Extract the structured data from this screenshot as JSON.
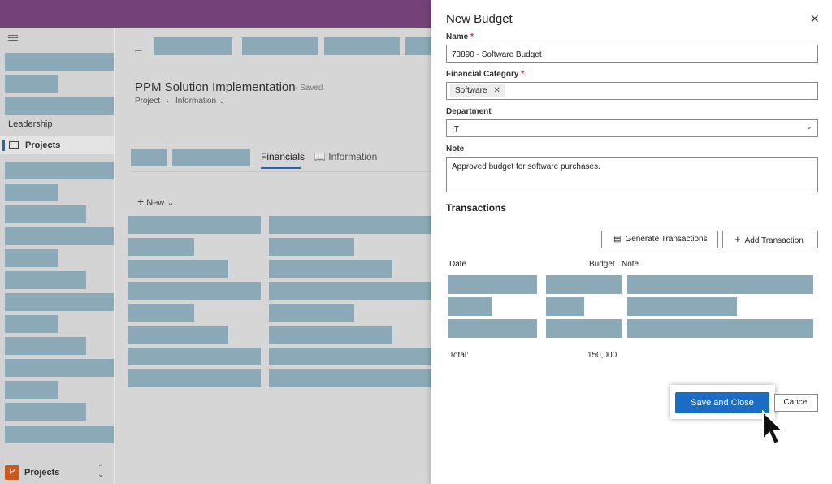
{
  "app": {
    "page_title": "PPM Solution Implementation",
    "saved_status": "- Saved",
    "entity_type": "Project",
    "form_name": "Information"
  },
  "sidebar": {
    "group_label": "Leadership",
    "selected_item": "Projects",
    "footer_avatar": "P",
    "footer_label": "Projects"
  },
  "tabs": {
    "financials": "Financials",
    "information": "Information"
  },
  "commands": {
    "new": "New"
  },
  "dialog": {
    "title": "New Budget",
    "name": {
      "label": "Name",
      "required": "*",
      "value": "73890 - Software Budget"
    },
    "financial_category": {
      "label": "Financial Category",
      "required": "*",
      "tag": "Software"
    },
    "department": {
      "label": "Department",
      "value": "IT"
    },
    "note": {
      "label": "Note",
      "value": "Approved budget for software purchases."
    },
    "transactions": {
      "title": "Transactions",
      "generate_button": "Generate Transactions",
      "add_button": "Add Transaction",
      "columns": {
        "date": "Date",
        "budget": "Budget",
        "note": "Note"
      },
      "total_label": "Total:",
      "total_value": "150,000"
    },
    "save_button": "Save and Close",
    "cancel_button": "Cancel"
  },
  "colors": {
    "topbar": "#744279",
    "placeholder": "#8ba9b7",
    "primary": "#1a6cc4",
    "avatar": "#c85a1e"
  }
}
